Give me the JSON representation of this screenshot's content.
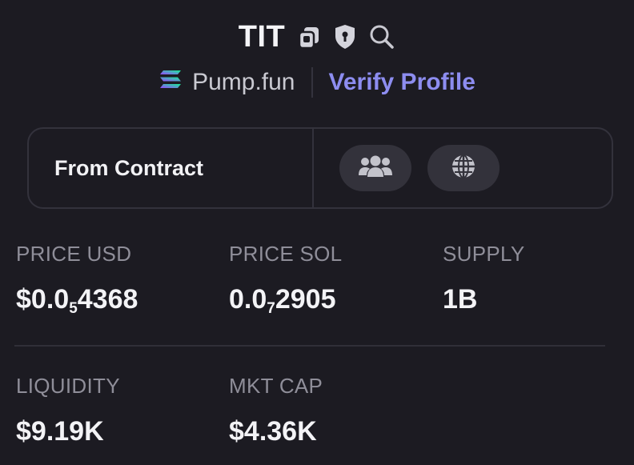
{
  "header": {
    "symbol": "TIT",
    "icons": [
      "copy-icon",
      "shield-icon",
      "search-icon"
    ]
  },
  "platform": {
    "icon": "solana-icon",
    "name": "Pump.fun",
    "verify_label": "Verify Profile"
  },
  "contract": {
    "label": "From Contract",
    "links": [
      "community-icon",
      "website-icon"
    ]
  },
  "stats": {
    "price_usd": {
      "label": "PRICE USD",
      "prefix": "$0.0",
      "zeros": "5",
      "digits": "4368"
    },
    "price_sol": {
      "label": "PRICE SOL",
      "prefix": "0.0",
      "zeros": "7",
      "digits": "2905"
    },
    "supply": {
      "label": "SUPPLY",
      "value": "1B"
    },
    "liquidity": {
      "label": "LIQUIDITY",
      "value": "$9.19K"
    },
    "mkt_cap": {
      "label": "MKT CAP",
      "value": "$4.36K"
    }
  },
  "colors": {
    "background": "#1c1b22",
    "accent": "#8d8df0",
    "muted_label": "#8f8e99",
    "border": "#33323c"
  }
}
